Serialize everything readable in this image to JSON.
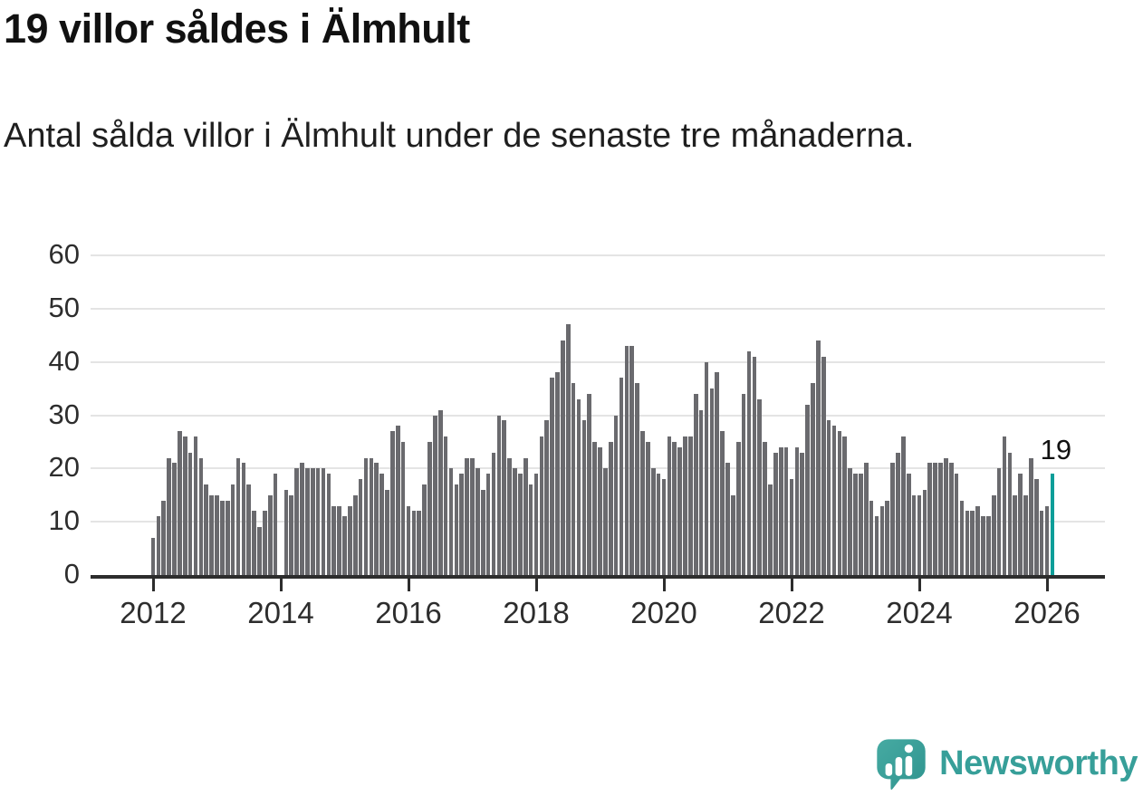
{
  "chart_data": {
    "type": "bar",
    "title": "19 villor såldes i Älmhult",
    "subtitle": "Antal sålda villor i Älmhult under de senaste tre månaderna.",
    "x_start": "2012-01",
    "x_end": "2026-02",
    "x_frequency": "monthly",
    "values": [
      7,
      11,
      14,
      22,
      21,
      27,
      26,
      23,
      26,
      22,
      17,
      15,
      15,
      14,
      14,
      17,
      22,
      21,
      17,
      12,
      9,
      12,
      15,
      19,
      0,
      16,
      15,
      20,
      21,
      20,
      20,
      20,
      20,
      19,
      13,
      13,
      11,
      13,
      15,
      18,
      22,
      22,
      21,
      19,
      16,
      27,
      28,
      25,
      13,
      12,
      12,
      17,
      25,
      30,
      31,
      26,
      20,
      17,
      19,
      22,
      22,
      20,
      16,
      19,
      23,
      30,
      29,
      22,
      20,
      19,
      22,
      17,
      19,
      26,
      29,
      37,
      38,
      44,
      47,
      36,
      33,
      29,
      34,
      25,
      24,
      20,
      25,
      30,
      37,
      43,
      43,
      36,
      27,
      25,
      20,
      19,
      18,
      26,
      25,
      24,
      26,
      26,
      34,
      31,
      40,
      35,
      38,
      27,
      21,
      15,
      25,
      34,
      42,
      41,
      33,
      25,
      17,
      23,
      24,
      24,
      18,
      24,
      23,
      32,
      36,
      44,
      41,
      29,
      28,
      27,
      26,
      20,
      19,
      19,
      21,
      14,
      11,
      13,
      14,
      21,
      23,
      26,
      19,
      15,
      15,
      16,
      21,
      21,
      21,
      22,
      21,
      19,
      14,
      12,
      12,
      13,
      11,
      11,
      15,
      20,
      26,
      23,
      15,
      19,
      15,
      22,
      18,
      12,
      13,
      19
    ],
    "highlight": {
      "index": 169,
      "value": 19,
      "label": "19"
    },
    "ylim": [
      0,
      60
    ],
    "yticks": [
      0,
      10,
      20,
      30,
      40,
      50,
      60
    ],
    "xticks": [
      2012,
      2014,
      2016,
      2018,
      2020,
      2022,
      2024,
      2026
    ],
    "grid": true,
    "legend": "none",
    "colors": {
      "bar": "#6a6a6e",
      "highlight": "#0c9e99",
      "axis": "#2d2d2d",
      "gridline": "#e4e4e4",
      "text": "#111111"
    }
  },
  "branding": {
    "name": "Newsworthy",
    "color": "#379f99"
  }
}
